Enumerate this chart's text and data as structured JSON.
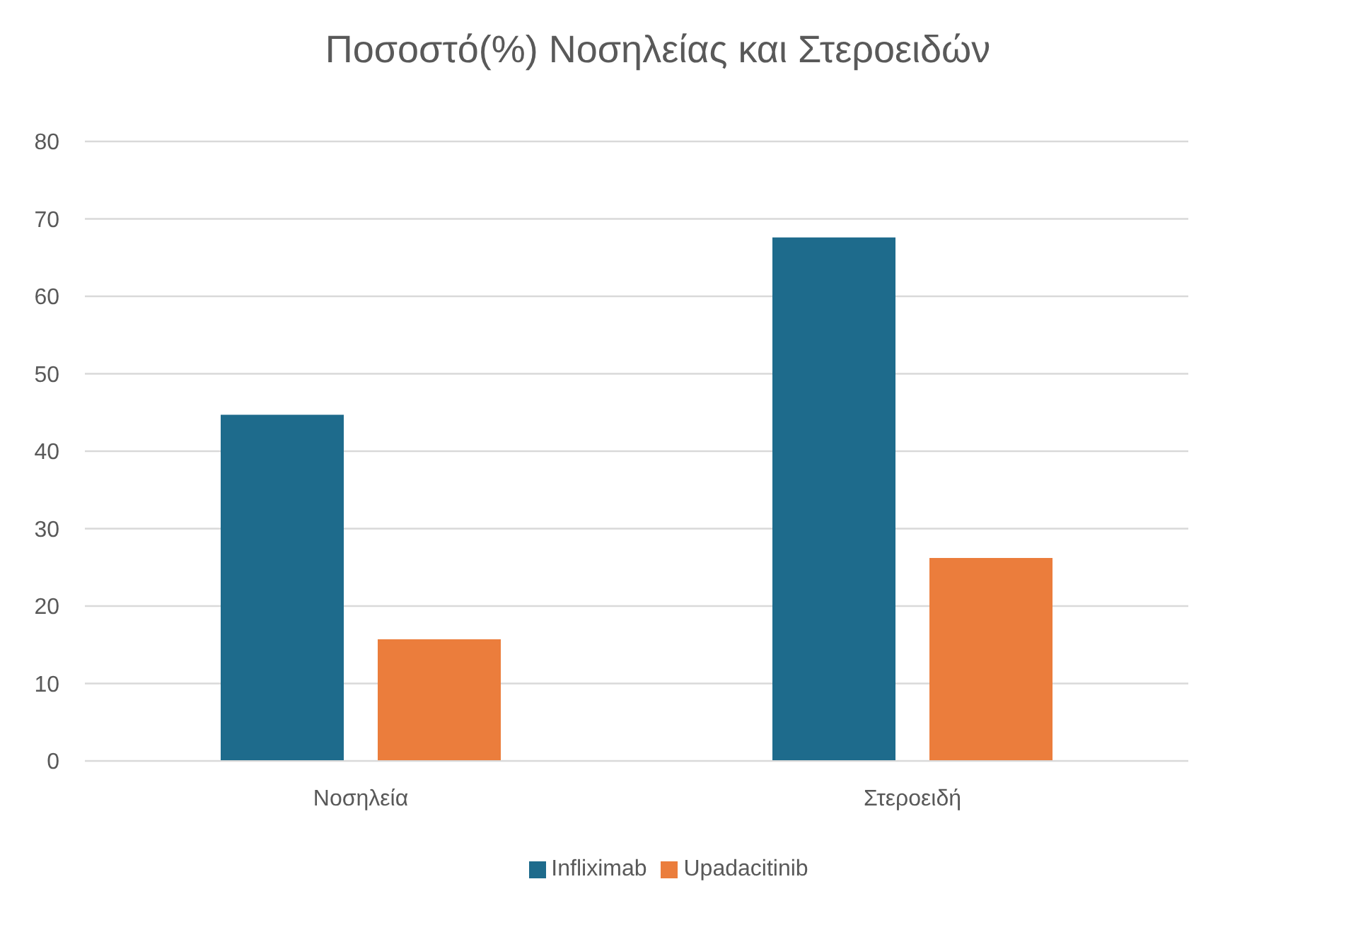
{
  "chart_data": {
    "type": "bar",
    "title": "Ποσοστό(%) Νοσηλείας και Στεροειδών",
    "categories": [
      "Νοσηλεία",
      "Στεροειδή"
    ],
    "series": [
      {
        "name": "Infliximab",
        "color": "#1e6b8c",
        "values": [
          44.7,
          67.6
        ]
      },
      {
        "name": "Upadacitinib",
        "color": "#eb7d3c",
        "values": [
          15.7,
          26.2
        ]
      }
    ],
    "ylim": [
      0,
      80
    ],
    "yticks": [
      0,
      10,
      20,
      30,
      40,
      50,
      60,
      70,
      80
    ],
    "grid": "y",
    "legend": "bottom"
  }
}
